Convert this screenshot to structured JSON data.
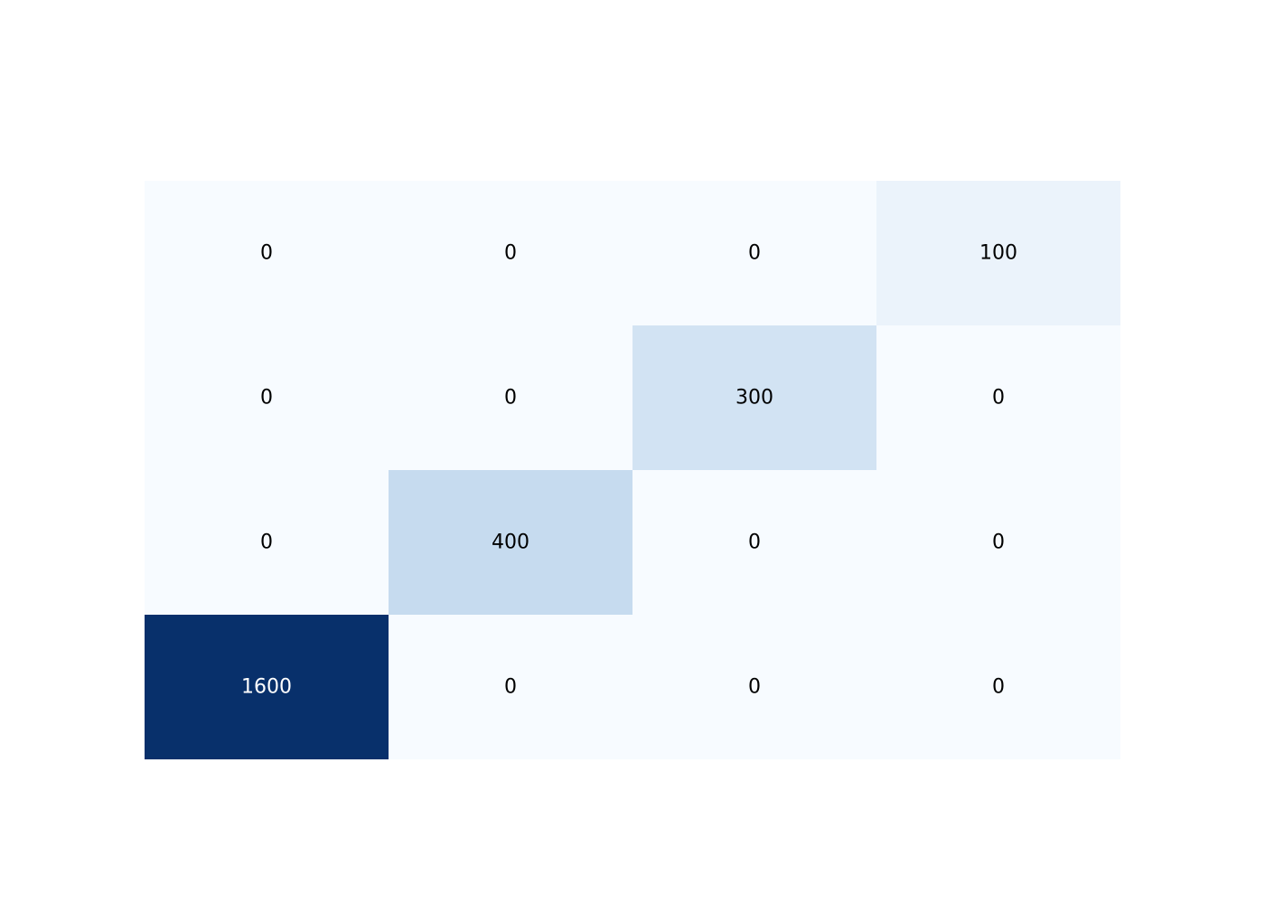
{
  "chart_data": {
    "type": "heatmap",
    "rows": 4,
    "cols": 4,
    "values": [
      [
        0,
        0,
        0,
        100
      ],
      [
        0,
        0,
        300,
        0
      ],
      [
        0,
        400,
        0,
        0
      ],
      [
        1600,
        0,
        0,
        0
      ]
    ],
    "labels": [
      [
        "0",
        "0",
        "0",
        "100"
      ],
      [
        "0",
        "0",
        "300",
        "0"
      ],
      [
        "0",
        "400",
        "0",
        "0"
      ],
      [
        "1600",
        "0",
        "0",
        "0"
      ]
    ],
    "colorscale": "Blues",
    "colors": {
      "min": "#f7fbff",
      "max": "#08306b",
      "text_dark": "#000000",
      "text_light": "#ffffff"
    }
  }
}
